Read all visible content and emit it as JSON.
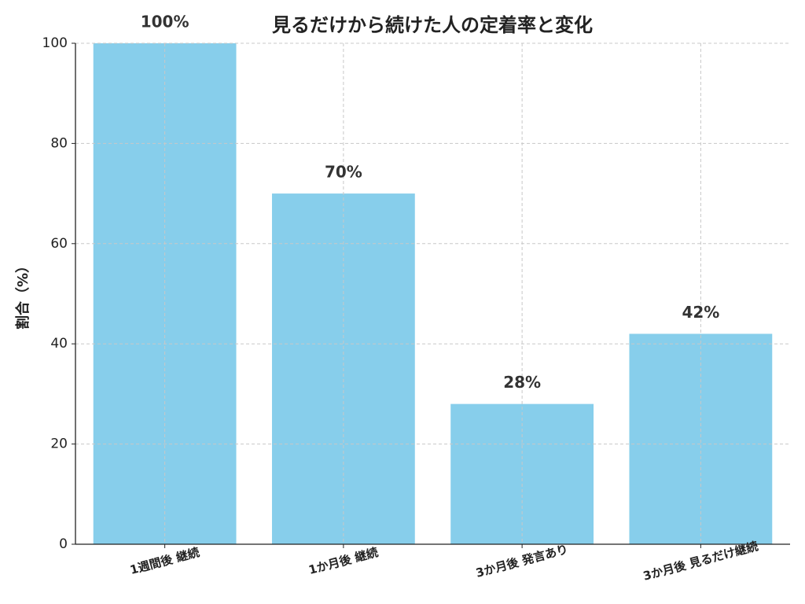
{
  "chart_data": {
    "type": "bar",
    "title": "見るだけから続けた人の定着率と変化",
    "y_label": "割合（%）",
    "categories": [
      "1週間後 継続",
      "1か月後 継続",
      "3か月後 発言あり",
      "3か月後 見るだけ継続"
    ],
    "values": [
      100,
      70,
      28,
      42
    ],
    "value_labels": [
      "100%",
      "70%",
      "28%",
      "42%"
    ],
    "color": "#87ceeb",
    "ylim": [
      0,
      100
    ],
    "yticks": [
      0,
      20,
      40,
      60,
      80,
      100
    ],
    "grid": true
  }
}
